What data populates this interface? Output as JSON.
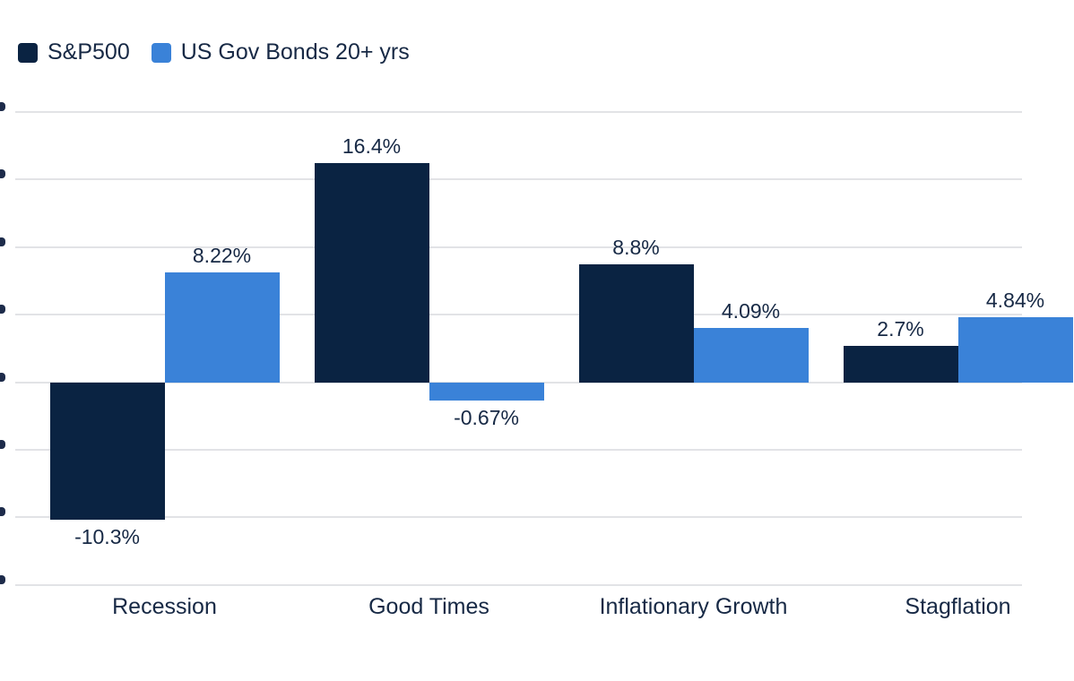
{
  "legend": {
    "items": [
      {
        "label": "S&P500",
        "color": "#0a2342"
      },
      {
        "label": "US Gov Bonds 20+ yrs",
        "color": "#3a82d8"
      }
    ]
  },
  "chart_data": {
    "type": "bar",
    "categories": [
      "Recession",
      "Good Times",
      "Inflationary Growth",
      "Stagflation"
    ],
    "series": [
      {
        "name": "S&P500",
        "color": "#0a2342",
        "values": [
          -10.3,
          16.4,
          8.8,
          2.7
        ],
        "value_labels": [
          "-10.3%",
          "16.4%",
          "8.8%",
          "2.7%"
        ]
      },
      {
        "name": "US Gov Bonds 20+ yrs",
        "color": "#3a82d8",
        "values": [
          8.22,
          -0.67,
          4.09,
          4.84
        ],
        "value_labels": [
          "8.22%",
          "-0.67%",
          "4.09%",
          "4.84%"
        ]
      }
    ],
    "title": "",
    "xlabel": "",
    "ylabel": "",
    "grid": true,
    "gridlines_visible": 8,
    "gridline_color": "#e2e3e6",
    "text_color": "#172945",
    "legend_position": "top-left",
    "ylim_estimate": [
      -15,
      20
    ],
    "y_tick_labels_clipped_at_left_edge": true,
    "last_bar_and_label_clipped_at_right_edge": true
  }
}
